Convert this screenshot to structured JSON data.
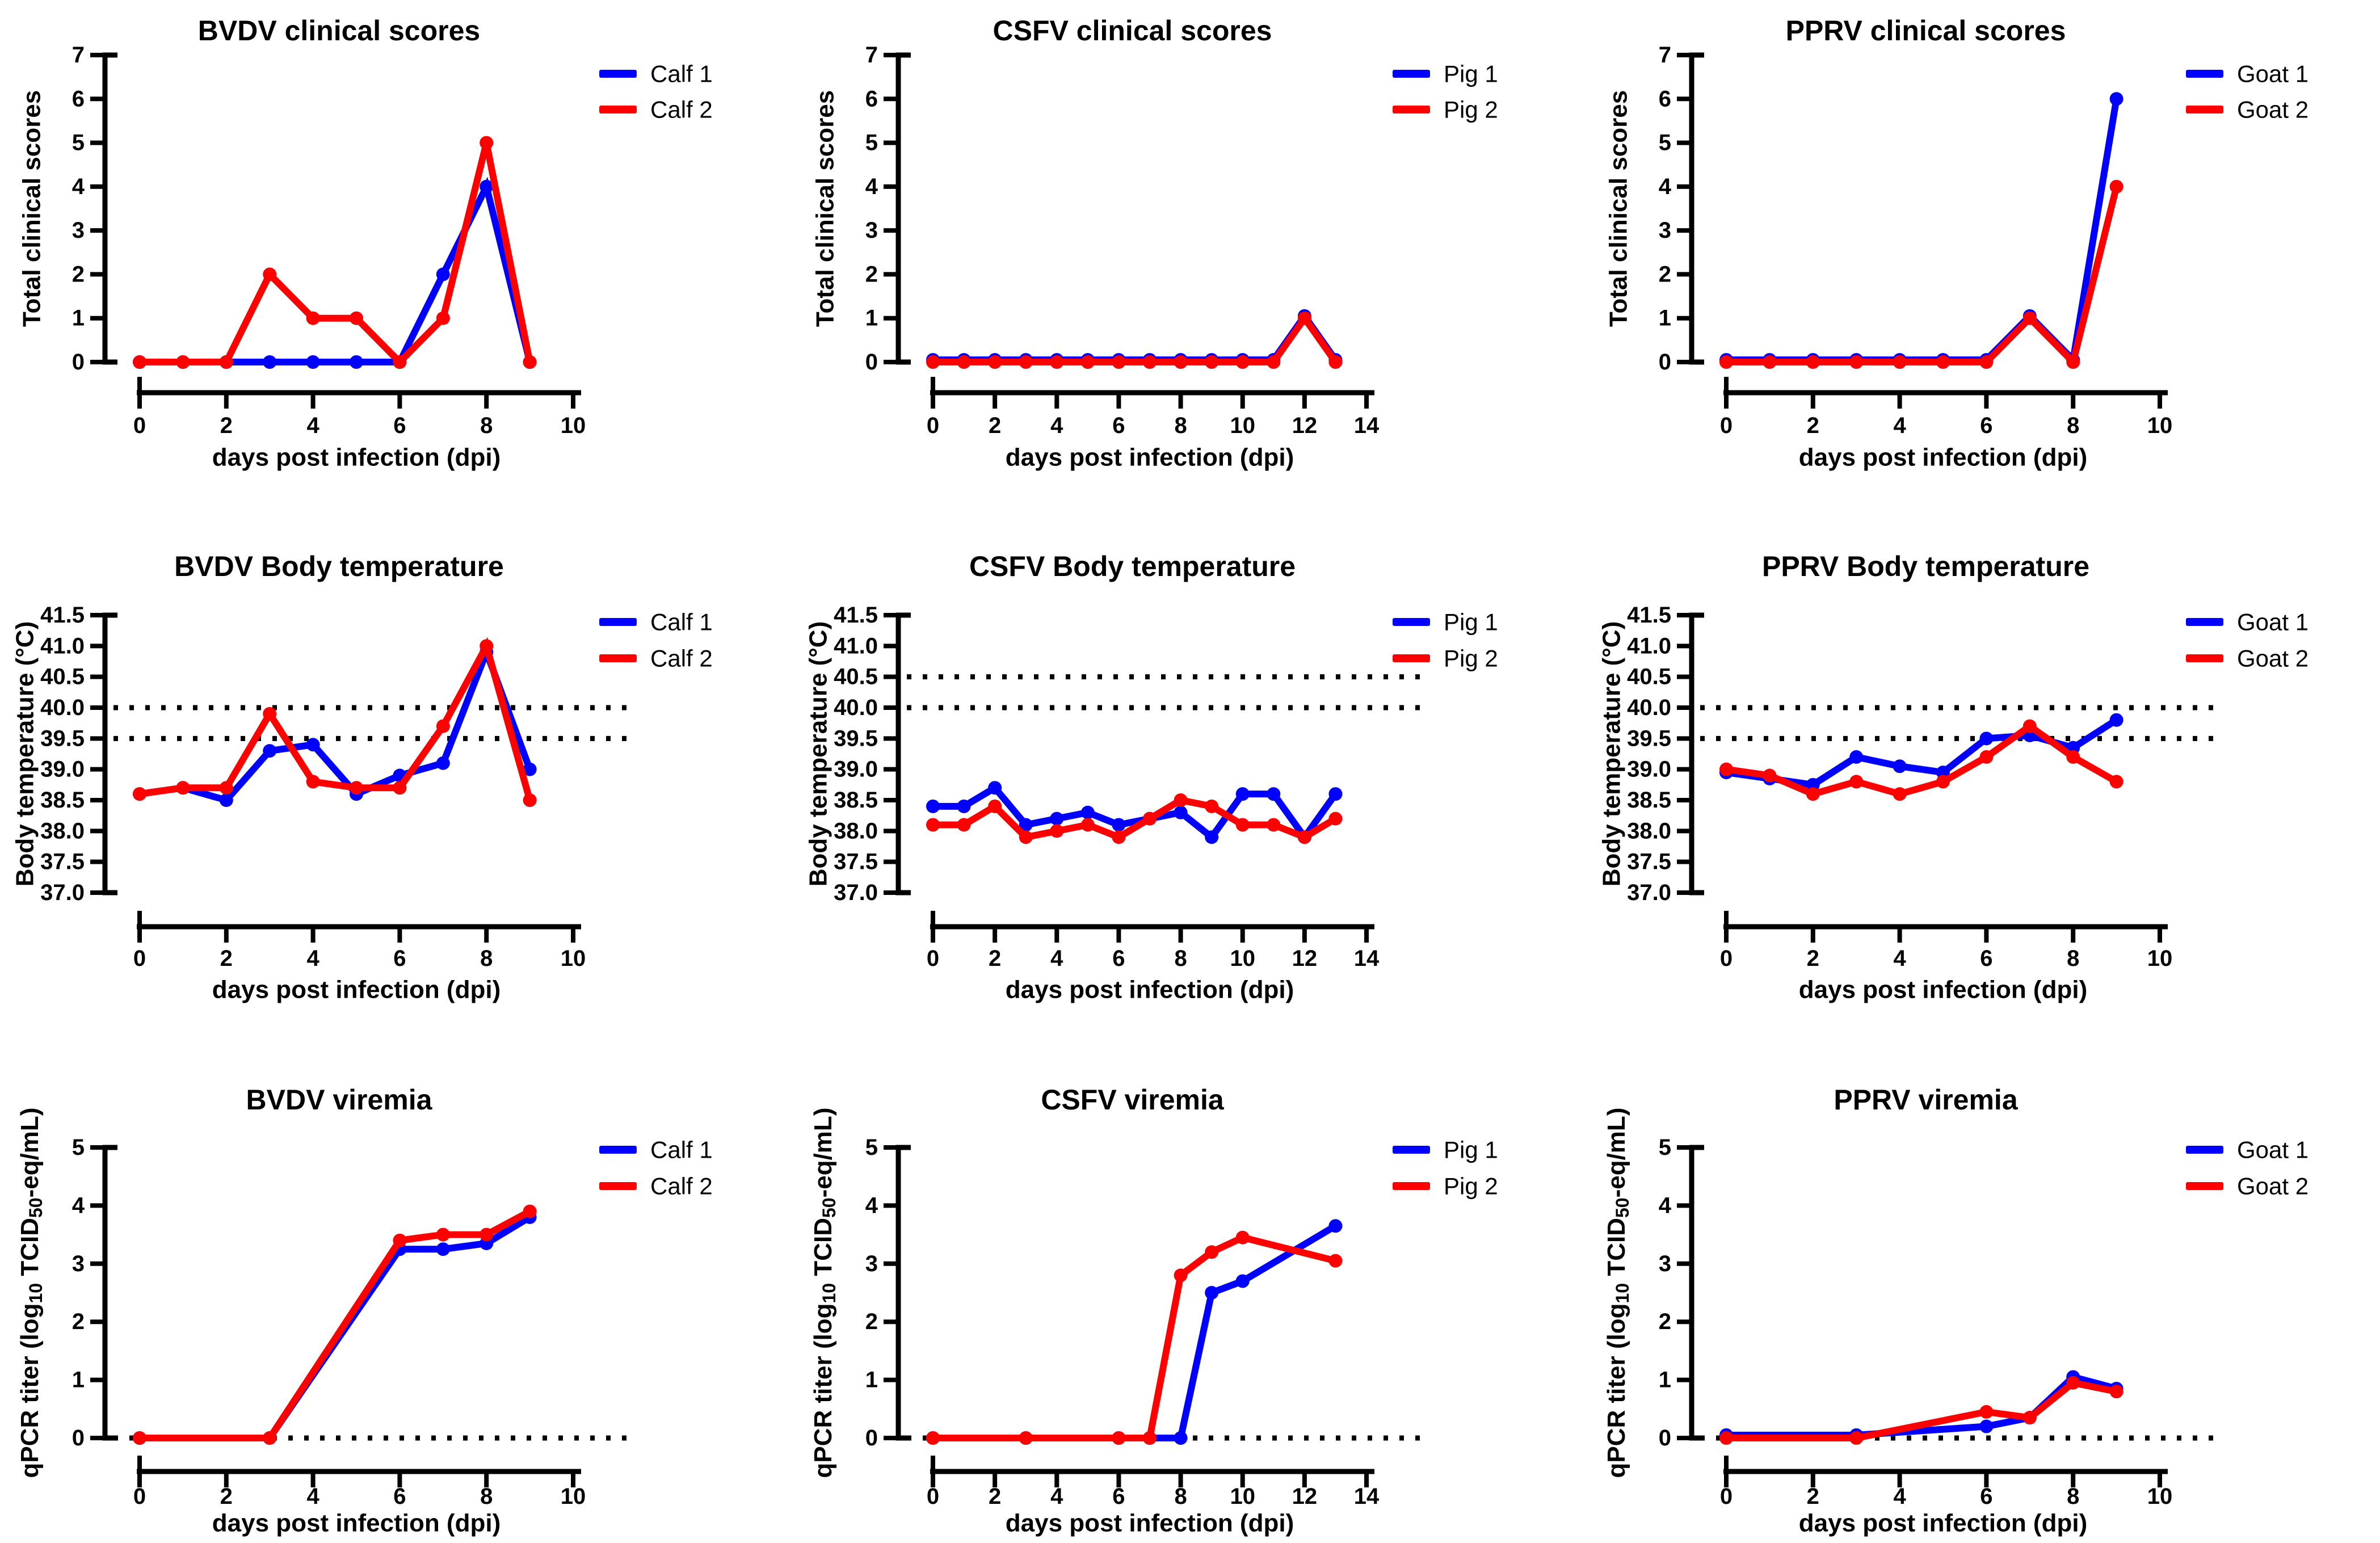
{
  "figure": {
    "background": "#ffffff",
    "rows": [
      "clinical scores",
      "body temperature",
      "viremia"
    ],
    "columns": [
      "BVDV",
      "CSFV",
      "PPRV"
    ],
    "accent_colors": {
      "series1": "#0000ff",
      "series2": "#ff0000",
      "axis": "#000000"
    }
  },
  "chart_data": [
    {
      "type": "line",
      "layout": "clinical",
      "title": "BVDV clinical scores",
      "xlabel": "days post infection (dpi)",
      "ylabel": "Total clinical scores",
      "xlim": [
        0,
        10
      ],
      "ylim": [
        0,
        7
      ],
      "x_ticks": [
        0,
        2,
        4,
        6,
        8,
        10
      ],
      "y_ticks": [
        "0",
        "1",
        "2",
        "3",
        "4",
        "5",
        "6",
        "7"
      ],
      "reference_lines": [],
      "legend_position": "right-top",
      "series": [
        {
          "name": "Calf 1",
          "color": "#0000ff",
          "x": [
            0,
            1,
            2,
            3,
            4,
            5,
            6,
            7,
            8,
            9
          ],
          "y": [
            0,
            0,
            0,
            0,
            0,
            0,
            0,
            2,
            4,
            0
          ]
        },
        {
          "name": "Calf 2",
          "color": "#ff0000",
          "x": [
            0,
            1,
            2,
            3,
            4,
            5,
            6,
            7,
            8,
            9
          ],
          "y": [
            0,
            0,
            0,
            2,
            1,
            1,
            0,
            1,
            5,
            0
          ]
        }
      ]
    },
    {
      "type": "line",
      "layout": "clinical",
      "title": "CSFV clinical scores",
      "xlabel": "days post infection (dpi)",
      "ylabel": "Total clinical scores",
      "xlim": [
        0,
        14
      ],
      "ylim": [
        0,
        7
      ],
      "x_ticks": [
        0,
        2,
        4,
        6,
        8,
        10,
        12,
        14
      ],
      "y_ticks": [
        "0",
        "1",
        "2",
        "3",
        "4",
        "5",
        "6",
        "7"
      ],
      "reference_lines": [],
      "legend_position": "right-top",
      "series": [
        {
          "name": "Pig 1",
          "color": "#0000ff",
          "x": [
            0,
            1,
            2,
            3,
            4,
            5,
            6,
            7,
            8,
            9,
            10,
            11,
            12,
            13
          ],
          "y": [
            0.05,
            0.05,
            0.05,
            0.05,
            0.05,
            0.05,
            0.05,
            0.05,
            0.05,
            0.05,
            0.05,
            0.05,
            1.05,
            0.05
          ]
        },
        {
          "name": "Pig 2",
          "color": "#ff0000",
          "x": [
            0,
            1,
            2,
            3,
            4,
            5,
            6,
            7,
            8,
            9,
            10,
            11,
            12,
            13
          ],
          "y": [
            0,
            0,
            0,
            0,
            0,
            0,
            0,
            0,
            0,
            0,
            0,
            0,
            1,
            0
          ]
        }
      ]
    },
    {
      "type": "line",
      "layout": "clinical",
      "title": "PPRV clinical scores",
      "xlabel": "days post infection (dpi)",
      "ylabel": "Total clinical scores",
      "xlim": [
        0,
        10
      ],
      "ylim": [
        0,
        7
      ],
      "x_ticks": [
        0,
        2,
        4,
        6,
        8,
        10
      ],
      "y_ticks": [
        "0",
        "1",
        "2",
        "3",
        "4",
        "5",
        "6",
        "7"
      ],
      "reference_lines": [],
      "legend_position": "right-top",
      "series": [
        {
          "name": "Goat 1",
          "color": "#0000ff",
          "x": [
            0,
            1,
            2,
            3,
            4,
            5,
            6,
            7,
            8,
            9
          ],
          "y": [
            0.05,
            0.05,
            0.05,
            0.05,
            0.05,
            0.05,
            0.05,
            1.05,
            0.05,
            6
          ]
        },
        {
          "name": "Goat 2",
          "color": "#ff0000",
          "x": [
            0,
            1,
            2,
            3,
            4,
            5,
            6,
            7,
            8,
            9
          ],
          "y": [
            0,
            0,
            0,
            0,
            0,
            0,
            0,
            1,
            0,
            4
          ]
        }
      ]
    },
    {
      "type": "line",
      "layout": "temperature",
      "title": "BVDV Body temperature",
      "xlabel": "days post infection (dpi)",
      "ylabel": "Body temperature (°C)",
      "xlim": [
        0,
        10
      ],
      "ylim": [
        37.0,
        41.5
      ],
      "x_ticks": [
        0,
        2,
        4,
        6,
        8,
        10
      ],
      "y_ticks": [
        "37.0",
        "37.5",
        "38.0",
        "38.5",
        "39.0",
        "39.5",
        "40.0",
        "40.5",
        "41.0",
        "41.5"
      ],
      "reference_lines": [
        39.5,
        40.0
      ],
      "legend_position": "right-top",
      "series": [
        {
          "name": "Calf 1",
          "color": "#0000ff",
          "x": [
            0,
            1,
            2,
            3,
            4,
            5,
            6,
            7,
            8,
            9
          ],
          "y": [
            38.6,
            38.7,
            38.5,
            39.3,
            39.4,
            38.6,
            38.9,
            39.1,
            40.9,
            39.0
          ]
        },
        {
          "name": "Calf 2",
          "color": "#ff0000",
          "x": [
            0,
            1,
            2,
            3,
            4,
            5,
            6,
            7,
            8,
            9
          ],
          "y": [
            38.6,
            38.7,
            38.7,
            39.9,
            38.8,
            38.7,
            38.7,
            39.7,
            41.0,
            38.5
          ]
        }
      ]
    },
    {
      "type": "line",
      "layout": "temperature",
      "title": "CSFV Body temperature",
      "xlabel": "days post infection (dpi)",
      "ylabel": "Body temperature (°C)",
      "xlim": [
        0,
        14
      ],
      "ylim": [
        37.0,
        41.5
      ],
      "x_ticks": [
        0,
        2,
        4,
        6,
        8,
        10,
        12,
        14
      ],
      "y_ticks": [
        "37.0",
        "37.5",
        "38.0",
        "38.5",
        "39.0",
        "39.5",
        "40.0",
        "40.5",
        "41.0",
        "41.5"
      ],
      "reference_lines": [
        40.0,
        40.5
      ],
      "legend_position": "right-top",
      "series": [
        {
          "name": "Pig 1",
          "color": "#0000ff",
          "x": [
            0,
            1,
            2,
            3,
            4,
            5,
            6,
            7,
            8,
            9,
            10,
            11,
            12,
            13
          ],
          "y": [
            38.4,
            38.4,
            38.7,
            38.1,
            38.2,
            38.3,
            38.1,
            38.2,
            38.3,
            37.9,
            38.6,
            38.6,
            37.9,
            38.6
          ]
        },
        {
          "name": "Pig 2",
          "color": "#ff0000",
          "x": [
            0,
            1,
            2,
            3,
            4,
            5,
            6,
            7,
            8,
            9,
            10,
            11,
            12,
            13
          ],
          "y": [
            38.1,
            38.1,
            38.4,
            37.9,
            38.0,
            38.1,
            37.9,
            38.2,
            38.5,
            38.4,
            38.1,
            38.1,
            37.9,
            38.2
          ]
        }
      ]
    },
    {
      "type": "line",
      "layout": "temperature",
      "title": "PPRV Body temperature",
      "xlabel": "days post infection (dpi)",
      "ylabel": "Body temperature (°C)",
      "xlim": [
        0,
        10
      ],
      "ylim": [
        37.0,
        41.5
      ],
      "x_ticks": [
        0,
        2,
        4,
        6,
        8,
        10
      ],
      "y_ticks": [
        "37.0",
        "37.5",
        "38.0",
        "38.5",
        "39.0",
        "39.5",
        "40.0",
        "40.5",
        "41.0",
        "41.5"
      ],
      "reference_lines": [
        39.5,
        40.0
      ],
      "legend_position": "right-top",
      "series": [
        {
          "name": "Goat 1",
          "color": "#0000ff",
          "x": [
            0,
            1,
            2,
            3,
            4,
            5,
            6,
            7,
            8,
            9
          ],
          "y": [
            38.95,
            38.85,
            38.75,
            39.2,
            39.05,
            38.95,
            39.5,
            39.55,
            39.35,
            39.8
          ]
        },
        {
          "name": "Goat 2",
          "color": "#ff0000",
          "x": [
            0,
            1,
            2,
            3,
            4,
            5,
            6,
            7,
            8,
            9
          ],
          "y": [
            39.0,
            38.9,
            38.6,
            38.8,
            38.6,
            38.8,
            39.2,
            39.7,
            39.2,
            38.8
          ]
        }
      ]
    },
    {
      "type": "line",
      "layout": "viremia",
      "title": "BVDV viremia",
      "xlabel": "days post infection (dpi)",
      "ylabel": "qPCR titer (log10 TCID50-eq/mL)",
      "ylabel_parts": [
        [
          "qPCR titer (log",
          false
        ],
        [
          "10",
          true
        ],
        [
          " TCID",
          false
        ],
        [
          "50",
          true
        ],
        [
          "-eq/mL)",
          false
        ]
      ],
      "xlim": [
        0,
        10
      ],
      "ylim": [
        0,
        5
      ],
      "x_ticks": [
        0,
        2,
        4,
        6,
        8,
        10
      ],
      "y_ticks": [
        "0",
        "1",
        "2",
        "3",
        "4",
        "5"
      ],
      "reference_lines": [
        0
      ],
      "legend_position": "right-top",
      "series": [
        {
          "name": "Calf 1",
          "color": "#0000ff",
          "x": [
            0,
            3,
            6,
            7,
            8,
            9
          ],
          "y": [
            0,
            0,
            3.25,
            3.25,
            3.35,
            3.8
          ]
        },
        {
          "name": "Calf 2",
          "color": "#ff0000",
          "x": [
            0,
            3,
            6,
            7,
            8,
            9
          ],
          "y": [
            0,
            0,
            3.4,
            3.5,
            3.5,
            3.9
          ]
        }
      ]
    },
    {
      "type": "line",
      "layout": "viremia",
      "title": "CSFV viremia",
      "xlabel": "days post infection (dpi)",
      "ylabel": "qPCR titer (log10 TCID50-eq/mL)",
      "ylabel_parts": [
        [
          "qPCR titer (log",
          false
        ],
        [
          "10",
          true
        ],
        [
          " TCID",
          false
        ],
        [
          "50",
          true
        ],
        [
          "-eq/mL)",
          false
        ]
      ],
      "xlim": [
        0,
        14
      ],
      "ylim": [
        0,
        5
      ],
      "x_ticks": [
        0,
        2,
        4,
        6,
        8,
        10,
        12,
        14
      ],
      "y_ticks": [
        "0",
        "1",
        "2",
        "3",
        "4",
        "5"
      ],
      "reference_lines": [
        0
      ],
      "legend_position": "right-top",
      "series": [
        {
          "name": "Pig 1",
          "color": "#0000ff",
          "x": [
            0,
            3,
            6,
            7,
            8,
            9,
            10,
            13
          ],
          "y": [
            0,
            0,
            0,
            0,
            0,
            2.5,
            2.7,
            3.65
          ]
        },
        {
          "name": "Pig 2",
          "color": "#ff0000",
          "x": [
            0,
            3,
            6,
            7,
            8,
            9,
            10,
            13
          ],
          "y": [
            0,
            0,
            0,
            0,
            2.8,
            3.2,
            3.45,
            3.05
          ]
        }
      ]
    },
    {
      "type": "line",
      "layout": "viremia",
      "title": "PPRV viremia",
      "xlabel": "days post infection (dpi)",
      "ylabel": "qPCR titer (log10 TCID50-eq/mL)",
      "ylabel_parts": [
        [
          "qPCR titer (log",
          false
        ],
        [
          "10",
          true
        ],
        [
          " TCID",
          false
        ],
        [
          "50",
          true
        ],
        [
          "-eq/mL)",
          false
        ]
      ],
      "xlim": [
        0,
        10
      ],
      "ylim": [
        0,
        5
      ],
      "x_ticks": [
        0,
        2,
        4,
        6,
        8,
        10
      ],
      "y_ticks": [
        "0",
        "1",
        "2",
        "3",
        "4",
        "5"
      ],
      "reference_lines": [
        0
      ],
      "legend_position": "right-top",
      "series": [
        {
          "name": "Goat 1",
          "color": "#0000ff",
          "x": [
            0,
            3,
            6,
            7,
            8,
            9
          ],
          "y": [
            0.05,
            0.05,
            0.2,
            0.35,
            1.05,
            0.85
          ]
        },
        {
          "name": "Goat 2",
          "color": "#ff0000",
          "x": [
            0,
            3,
            6,
            7,
            8,
            9
          ],
          "y": [
            0,
            0,
            0.45,
            0.35,
            0.95,
            0.8
          ]
        }
      ]
    }
  ]
}
